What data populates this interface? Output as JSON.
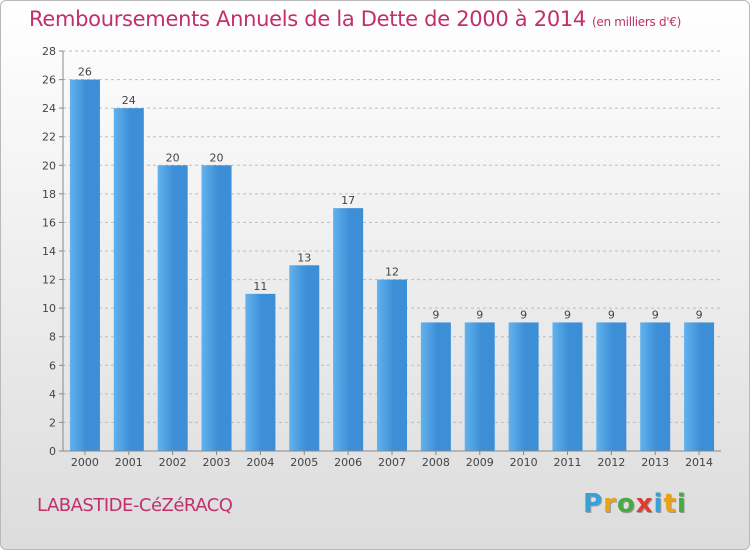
{
  "title": "Remboursements Annuels de la Dette de 2000 à 2014",
  "subtitle": "(en milliers d'€)",
  "commune": "LABASTIDE-CéZéRACQ",
  "brand": {
    "letters": [
      "P",
      "r",
      "o",
      "x",
      "i",
      "t",
      "i"
    ],
    "colors": [
      "#3aa0d8",
      "#e8a317",
      "#49a942",
      "#e03c31",
      "#3aa0d8",
      "#e8a317",
      "#49a942"
    ]
  },
  "colors": {
    "bar": "#3c8fd6",
    "bar_light": "#62b2ee",
    "title": "#c1306a",
    "axis": "#888888",
    "grid": "#bdbdbd"
  },
  "chart_data": {
    "type": "bar",
    "categories": [
      "2000",
      "2001",
      "2002",
      "2003",
      "2004",
      "2005",
      "2006",
      "2007",
      "2008",
      "2009",
      "2010",
      "2011",
      "2012",
      "2013",
      "2014"
    ],
    "values": [
      26,
      24,
      20,
      20,
      11,
      13,
      17,
      12,
      9,
      9,
      9,
      9,
      9,
      9,
      9
    ],
    "ylim": [
      0,
      28
    ],
    "yticks": [
      0,
      2,
      4,
      6,
      8,
      10,
      12,
      14,
      16,
      18,
      20,
      22,
      24,
      26,
      28
    ],
    "grid": true,
    "xlabel": "",
    "ylabel": ""
  }
}
